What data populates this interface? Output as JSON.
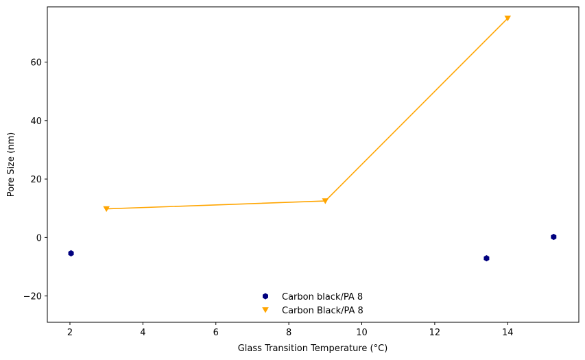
{
  "chart_data": {
    "type": "scatter",
    "xlabel": "Glass Transition Temperature (°C)",
    "ylabel": "Pore Size (nm)",
    "xlim": [
      1.38,
      15.95
    ],
    "ylim": [
      -29.0,
      78.9
    ],
    "x_ticks": [
      2,
      4,
      6,
      8,
      10,
      12,
      14
    ],
    "y_ticks": [
      -20,
      0,
      20,
      40,
      60
    ],
    "x_tick_labels": [
      "2",
      "4",
      "6",
      "8",
      "10",
      "12",
      "14"
    ],
    "y_tick_labels": [
      "−20",
      "0",
      "20",
      "40",
      "60"
    ],
    "grid": false,
    "legend_position": "lower-center",
    "series": [
      {
        "name": "Carbon black/PA 8",
        "marker": "hexagon",
        "line": false,
        "color": "#00007f",
        "points": [
          {
            "x": 2.03,
            "y": -5.4
          },
          {
            "x": 13.42,
            "y": -7.1
          },
          {
            "x": 15.26,
            "y": 0.2
          }
        ]
      },
      {
        "name": "Carbon Black/PA 8",
        "marker": "triangle-down",
        "line": true,
        "color": "#ffa500",
        "points": [
          {
            "x": 3.0,
            "y": 9.8
          },
          {
            "x": 9.0,
            "y": 12.5
          },
          {
            "x": 14.0,
            "y": 75.0
          }
        ]
      }
    ]
  }
}
